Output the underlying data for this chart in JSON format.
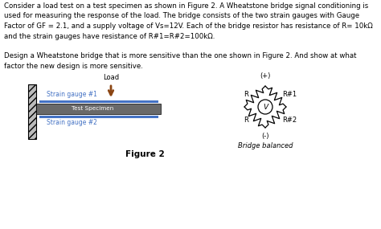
{
  "line1": "Consider a load test on a test specimen as shown in Figure 2. A Wheatstone bridge signal conditioning is",
  "line2": "used for measuring the response of the load. The bridge consists of the two strain gauges with Gauge",
  "line3": "Factor of GF = 2.1, and a supply voltage of Vs=12V. Each of the bridge resistor has resistance of R= 10kΩ",
  "line4": "and the strain gauges have resistance of R#1=R#2=100kΩ.",
  "line5": "",
  "line6": "Design a Wheatstone bridge that is more sensitive than the one shown in Figure 2. And show at what",
  "line7": "factor the new design is more sensitive.",
  "figure_label": "Figure 2",
  "load_label": "Load",
  "strain1_label": "Strain gauge #1",
  "strain2_label": "Strain gauge #2",
  "specimen_label": "Test Specimen",
  "bridge_label": "Bridge balanced",
  "plus_label": "(+)",
  "minus_label": "(-)",
  "R_tl": "R",
  "R_tr": "R#1",
  "R_bl": "R",
  "R_br": "R#2",
  "bg_color": "#ffffff",
  "specimen_color": "#696969",
  "strain_color": "#4472c4",
  "arrow_color": "#8B4513",
  "text_fontsize": 6.2,
  "diagram_text_fontsize": 6.0
}
